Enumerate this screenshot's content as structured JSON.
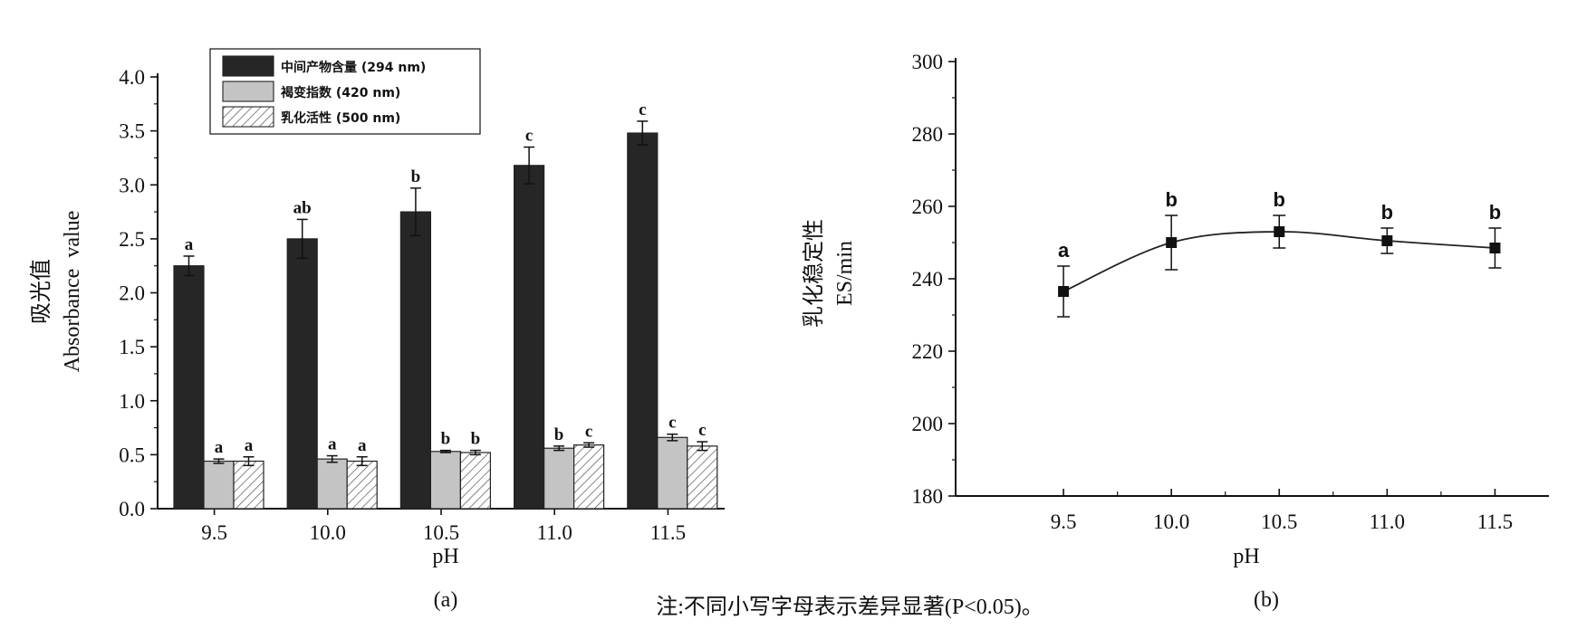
{
  "note": "注:不同小写字母表示差异显著(P<0.05)。",
  "chart_data": [
    {
      "type": "bar",
      "panel_label": "(a)",
      "categories": [
        "9.5",
        "10.0",
        "10.5",
        "11.0",
        "11.5"
      ],
      "xlabel": "pH",
      "ylabel_cn": "吸光值",
      "ylabel_en": "Absorbance  value",
      "ylim": [
        0,
        4.0
      ],
      "yticks": [
        "0.0",
        "0.5",
        "1.0",
        "1.5",
        "2.0",
        "2.5",
        "3.0",
        "3.5",
        "4.0"
      ],
      "legend_position": "top-left",
      "series": [
        {
          "name": "中间产物含量 (294 nm)",
          "color": "#262626",
          "pattern": "solid",
          "values": [
            2.25,
            2.5,
            2.75,
            3.18,
            3.48
          ],
          "errors": [
            0.09,
            0.18,
            0.22,
            0.17,
            0.11
          ],
          "labels": [
            "a",
            "ab",
            "b",
            "c",
            "c"
          ]
        },
        {
          "name": "褐变指数 (420 nm)",
          "color": "#c4c4c4",
          "pattern": "solid",
          "values": [
            0.44,
            0.46,
            0.53,
            0.56,
            0.66
          ],
          "errors": [
            0.02,
            0.03,
            0.01,
            0.02,
            0.03
          ],
          "labels": [
            "a",
            "a",
            "b",
            "b",
            "c"
          ]
        },
        {
          "name": "乳化活性 (500 nm)",
          "color": "#ffffff",
          "pattern": "hatch",
          "values": [
            0.44,
            0.44,
            0.52,
            0.59,
            0.58
          ],
          "errors": [
            0.04,
            0.04,
            0.02,
            0.02,
            0.04
          ],
          "labels": [
            "a",
            "a",
            "b",
            "c",
            "c"
          ]
        }
      ]
    },
    {
      "type": "line",
      "panel_label": "(b)",
      "x": [
        "9.5",
        "10.0",
        "10.5",
        "11.0",
        "11.5"
      ],
      "xlabel": "pH",
      "ylabel_cn": "乳化稳定性",
      "ylabel_en": "ES/min",
      "ylim": [
        180,
        300
      ],
      "yticks": [
        "180",
        "200",
        "220",
        "240",
        "260",
        "280",
        "300"
      ],
      "series": [
        {
          "values": [
            236.5,
            250,
            253,
            250.5,
            248.5
          ],
          "errors": [
            7,
            7.5,
            4.5,
            3.5,
            5.5
          ],
          "labels": [
            "a",
            "b",
            "b",
            "b",
            "b"
          ]
        }
      ]
    }
  ]
}
